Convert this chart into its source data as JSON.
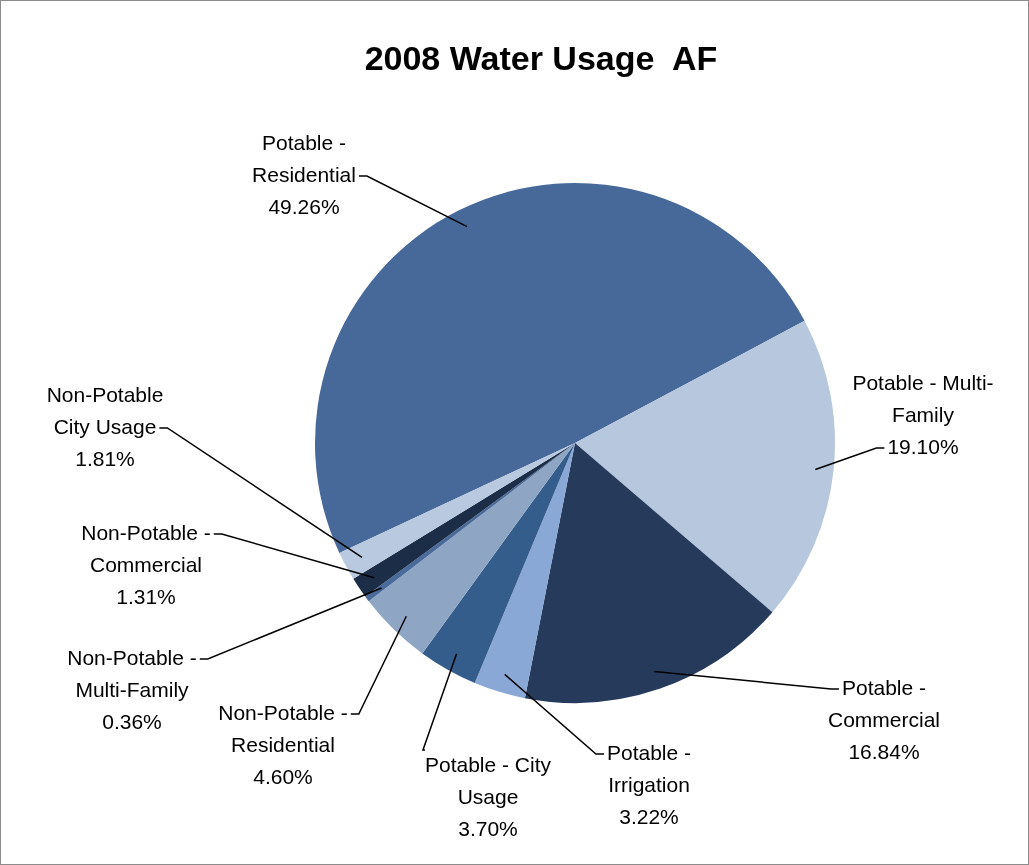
{
  "chart_data": {
    "type": "pie",
    "title": "2008 Water Usage  AF",
    "categories": [
      "Potable - Residential",
      "Potable - Multi-Family",
      "Potable - Commercial",
      "Potable - Irrigation",
      "Potable - City Usage",
      "Non-Potable - Residential",
      "Non-Potable - Multi-Family",
      "Non-Potable - Commercial",
      "Non-Potable City Usage"
    ],
    "values": [
      49.26,
      19.1,
      16.84,
      3.22,
      3.7,
      4.6,
      0.36,
      1.31,
      1.81
    ],
    "colors": [
      "#46699a",
      "#b7c7de",
      "#263b5c",
      "#8aa8d5",
      "#355d8c",
      "#8ea5c4",
      "#4a6b9a",
      "#1c2d47",
      "#b9c9df"
    ],
    "value_labels": [
      "49.26%",
      "19.10%",
      "16.84%",
      "3.22%",
      "3.70%",
      "4.60%",
      "0.36%",
      "1.31%",
      "1.81%"
    ],
    "legend": false
  }
}
